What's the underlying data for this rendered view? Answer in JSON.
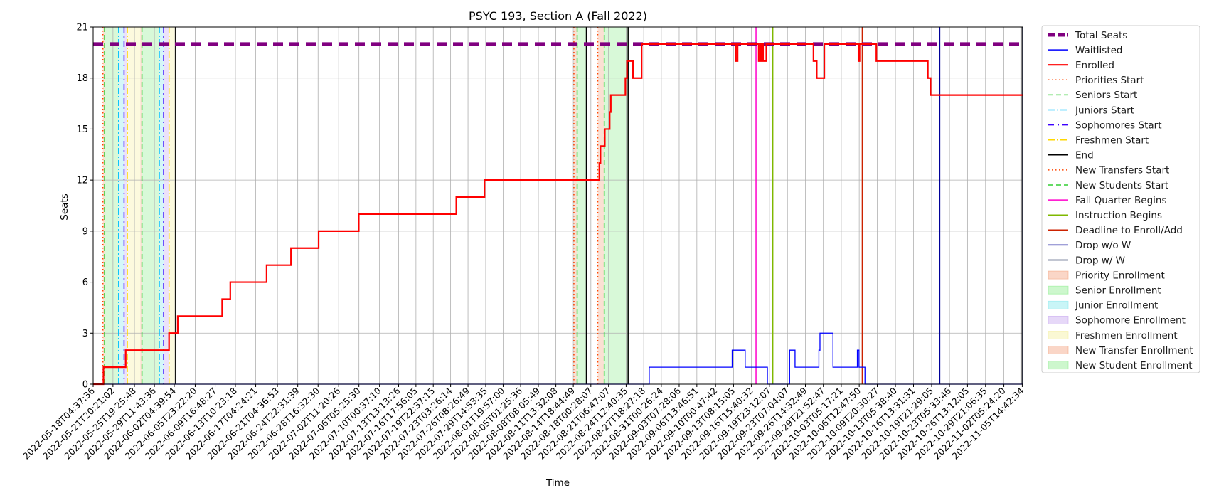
{
  "chart_data": {
    "type": "line",
    "title": "PSYC 193, Section A (Fall 2022)",
    "xlabel": "Time",
    "ylabel": "Seats",
    "ylim": [
      0,
      21
    ],
    "yticks": [
      0,
      3,
      6,
      9,
      12,
      15,
      18,
      21
    ],
    "xlim_day": [
      0,
      171.5
    ],
    "grid": true,
    "legend_position": "outside-right",
    "xtick_labels": [
      "2022-05-18T04:37:36",
      "2022-05-21T20:21:02",
      "2022-05-25T19:25:48",
      "2022-05-29T11:43:36",
      "2022-06-02T04:39:54",
      "2022-06-05T23:22:20",
      "2022-06-09T16:48:27",
      "2022-06-13T10:23:18",
      "2022-06-17T04:24:21",
      "2022-06-21T04:36:53",
      "2022-06-24T22:31:39",
      "2022-06-28T16:32:30",
      "2022-07-02T11:20:26",
      "2022-07-06T05:25:30",
      "2022-07-10T00:37:10",
      "2022-07-13T13:13:26",
      "2022-07-16T17:56:05",
      "2022-07-19T22:37:15",
      "2022-07-23T03:26:14",
      "2022-07-26T08:26:49",
      "2022-07-29T14:53:35",
      "2022-08-01T19:57:00",
      "2022-08-05T01:25:36",
      "2022-08-08T08:05:49",
      "2022-08-11T13:32:08",
      "2022-08-14T18:44:49",
      "2022-08-18T00:28:07",
      "2022-08-21T06:47:07",
      "2022-08-24T12:40:35",
      "2022-08-27T18:27:18",
      "2022-08-31T00:26:24",
      "2022-09-03T07:28:06",
      "2022-09-06T13:46:51",
      "2022-09-10T00:47:42",
      "2022-09-13T08:15:05",
      "2022-09-16T15:40:32",
      "2022-09-19T23:12:07",
      "2022-09-23T07:04:07",
      "2022-09-26T14:32:49",
      "2022-09-29T21:52:47",
      "2022-10-03T05:17:21",
      "2022-10-06T12:47:50",
      "2022-10-09T20:30:27",
      "2022-10-13T05:38:40",
      "2022-10-16T13:31:31",
      "2022-10-19T21:29:05",
      "2022-10-23T05:33:46",
      "2022-10-26T13:12:05",
      "2022-10-29T21:06:35",
      "2022-11-02T05:24:20",
      "2022-11-05T14:42:34"
    ],
    "xtick_days": [
      0,
      3.656,
      7.616,
      11.297,
      14.959,
      18.822,
      22.509,
      26.241,
      29.99,
      33.999,
      37.746,
      41.496,
      45.295,
      49.033,
      52.833,
      56.36,
      59.555,
      62.75,
      65.951,
      69.159,
      72.427,
      75.638,
      78.867,
      82.143,
      85.371,
      88.588,
      91.826,
      95.09,
      98.335,
      101.576,
      104.826,
      108.119,
      111.381,
      114.84,
      118.151,
      121.46,
      124.773,
      128.101,
      131.412,
      134.717,
      138.028,
      141.34,
      144.665,
      148.02,
      151.357,
      154.702,
      157.999,
      161.317,
      164.646,
      168.032,
      171.42
    ],
    "series": [
      {
        "name": "Total Seats",
        "color": "#800080",
        "style": "thick-dashed",
        "steps": [
          [
            0,
            20
          ],
          [
            171.5,
            20
          ]
        ]
      },
      {
        "name": "Waitlisted",
        "color": "#0000ff",
        "style": "solid",
        "steps": [
          [
            0,
            0
          ],
          [
            102.6,
            1
          ],
          [
            117.9,
            2
          ],
          [
            120.3,
            1
          ],
          [
            124.4,
            0
          ],
          [
            126.0,
            0
          ],
          [
            128.5,
            2
          ],
          [
            129.5,
            1
          ],
          [
            133.9,
            2
          ],
          [
            134.1,
            3
          ],
          [
            136.5,
            1
          ],
          [
            141.0,
            2
          ],
          [
            141.3,
            1
          ],
          [
            142.4,
            0
          ],
          [
            171.5,
            0
          ]
        ]
      },
      {
        "name": "Enrolled",
        "color": "#ff0000",
        "style": "solid",
        "steps": [
          [
            0,
            0
          ],
          [
            1.9,
            1
          ],
          [
            6.0,
            2
          ],
          [
            14.0,
            3
          ],
          [
            15.6,
            4
          ],
          [
            23.8,
            5
          ],
          [
            25.3,
            6
          ],
          [
            32.0,
            7
          ],
          [
            36.5,
            8
          ],
          [
            41.6,
            9
          ],
          [
            49.0,
            10
          ],
          [
            67.0,
            11
          ],
          [
            72.2,
            12
          ],
          [
            93.4,
            13
          ],
          [
            93.6,
            14
          ],
          [
            94.4,
            15
          ],
          [
            95.3,
            16
          ],
          [
            95.5,
            17
          ],
          [
            98.2,
            18
          ],
          [
            98.5,
            19
          ],
          [
            99.6,
            18
          ],
          [
            101.2,
            20
          ],
          [
            118.6,
            19
          ],
          [
            118.9,
            20
          ],
          [
            122.8,
            19
          ],
          [
            123.2,
            20
          ],
          [
            123.6,
            19
          ],
          [
            124.2,
            20
          ],
          [
            132.9,
            19
          ],
          [
            133.5,
            18
          ],
          [
            134.9,
            20
          ],
          [
            141.2,
            19
          ],
          [
            141.4,
            20
          ],
          [
            144.5,
            19
          ],
          [
            154.0,
            18
          ],
          [
            154.5,
            17
          ],
          [
            171.5,
            17
          ]
        ]
      }
    ],
    "vertical_markers": [
      {
        "name": "Priorities Start",
        "color": "#ff4500",
        "style": "dotted",
        "days": [
          1.8
        ]
      },
      {
        "name": "Seniors Start",
        "color": "#32cd32",
        "style": "dashed",
        "days": [
          2.1,
          9.0
        ]
      },
      {
        "name": "Juniors Start",
        "color": "#00bfff",
        "style": "dashdot",
        "days": [
          4.7,
          12.2
        ]
      },
      {
        "name": "Sophomores Start",
        "color": "#3c00ff",
        "style": "dashdot-sparse",
        "days": [
          5.7,
          13.0
        ]
      },
      {
        "name": "Freshmen Start",
        "color": "#ffd700",
        "style": "dashdot",
        "days": [
          6.3,
          14.0
        ]
      },
      {
        "name": "End",
        "color": "#000000",
        "style": "solid",
        "days": [
          15.2,
          91.0,
          98.7,
          171.2
        ]
      },
      {
        "name": "New Transfers Start",
        "color": "#ff4500",
        "style": "dotted",
        "days": [
          88.7,
          93.1
        ]
      },
      {
        "name": "New Students Start",
        "color": "#32cd32",
        "style": "dashed",
        "days": [
          89.3,
          94.3
        ]
      },
      {
        "name": "Fall Quarter Begins",
        "color": "#ff00cc",
        "style": "solid",
        "days": [
          122.3
        ]
      },
      {
        "name": "Instruction Begins",
        "color": "#7fb800",
        "style": "solid",
        "days": [
          125.4
        ]
      },
      {
        "name": "Deadline to Enroll/Add",
        "color": "#cc2200",
        "style": "solid",
        "days": [
          141.9
        ]
      },
      {
        "name": "Drop w/o W",
        "color": "#000099",
        "style": "solid",
        "days": [
          156.2
        ]
      },
      {
        "name": "Drop w/ W",
        "color": "#0d1a4d",
        "style": "solid",
        "days": [
          171.5
        ]
      }
    ],
    "shaded_periods": [
      {
        "name": "Priority Enrollment",
        "color": "#f4a582",
        "spans": [
          [
            1.8,
            2.1
          ],
          [
            8.7,
            9.0
          ]
        ]
      },
      {
        "name": "Senior Enrollment",
        "color": "#90ee90",
        "spans": [
          [
            2.1,
            4.7
          ],
          [
            9.0,
            12.2
          ]
        ]
      },
      {
        "name": "Junior Enrollment",
        "color": "#87e8ee",
        "spans": [
          [
            4.7,
            5.7
          ],
          [
            12.2,
            13.0
          ]
        ]
      },
      {
        "name": "Sophomore Enrollment",
        "color": "#c8a8f0",
        "spans": [
          [
            5.7,
            6.3
          ],
          [
            13.0,
            14.0
          ]
        ]
      },
      {
        "name": "Freshmen Enrollment",
        "color": "#f5f0a0",
        "spans": [
          [
            6.3,
            8.7
          ],
          [
            14.0,
            15.2
          ]
        ]
      },
      {
        "name": "New Transfer Enrollment",
        "color": "#f4a582",
        "spans": [
          [
            88.7,
            89.3
          ],
          [
            93.1,
            94.3
          ]
        ]
      },
      {
        "name": "New Student Enrollment",
        "color": "#90ee90",
        "spans": [
          [
            89.3,
            91.0
          ],
          [
            94.3,
            98.7
          ]
        ]
      }
    ],
    "legend": [
      {
        "label": "Total Seats",
        "kind": "line",
        "color": "#800080",
        "style": "thick-dashed"
      },
      {
        "label": "Waitlisted",
        "kind": "line",
        "color": "#0000ff",
        "style": "solid"
      },
      {
        "label": "Enrolled",
        "kind": "line",
        "color": "#ff0000",
        "style": "solid-thick"
      },
      {
        "label": "Priorities Start",
        "kind": "line",
        "color": "#ff4500",
        "style": "dotted"
      },
      {
        "label": "Seniors Start",
        "kind": "line",
        "color": "#32cd32",
        "style": "dashed"
      },
      {
        "label": "Juniors Start",
        "kind": "line",
        "color": "#00bfff",
        "style": "dashdot"
      },
      {
        "label": "Sophomores Start",
        "kind": "line",
        "color": "#3c00ff",
        "style": "dashdot-sparse"
      },
      {
        "label": "Freshmen Start",
        "kind": "line",
        "color": "#ffd700",
        "style": "dashdot"
      },
      {
        "label": "End",
        "kind": "line",
        "color": "#000000",
        "style": "solid"
      },
      {
        "label": "New Transfers Start",
        "kind": "line",
        "color": "#ff4500",
        "style": "dotted"
      },
      {
        "label": "New Students Start",
        "kind": "line",
        "color": "#32cd32",
        "style": "dashed"
      },
      {
        "label": "Fall Quarter Begins",
        "kind": "line",
        "color": "#ff00cc",
        "style": "solid"
      },
      {
        "label": "Instruction Begins",
        "kind": "line",
        "color": "#7fb800",
        "style": "solid"
      },
      {
        "label": "Deadline to Enroll/Add",
        "kind": "line",
        "color": "#cc2200",
        "style": "solid"
      },
      {
        "label": "Drop w/o W",
        "kind": "line",
        "color": "#000099",
        "style": "solid"
      },
      {
        "label": "Drop w/ W",
        "kind": "line",
        "color": "#0d1a4d",
        "style": "solid"
      },
      {
        "label": "Priority Enrollment",
        "kind": "patch",
        "color": "#f4a582"
      },
      {
        "label": "Senior Enrollment",
        "kind": "patch",
        "color": "#90ee90"
      },
      {
        "label": "Junior Enrollment",
        "kind": "patch",
        "color": "#87e8ee"
      },
      {
        "label": "Sophomore Enrollment",
        "kind": "patch",
        "color": "#c8a8f0"
      },
      {
        "label": "Freshmen Enrollment",
        "kind": "patch",
        "color": "#f5f0a0"
      },
      {
        "label": "New Transfer Enrollment",
        "kind": "patch",
        "color": "#f4a582"
      },
      {
        "label": "New Student Enrollment",
        "kind": "patch",
        "color": "#90ee90"
      }
    ]
  }
}
